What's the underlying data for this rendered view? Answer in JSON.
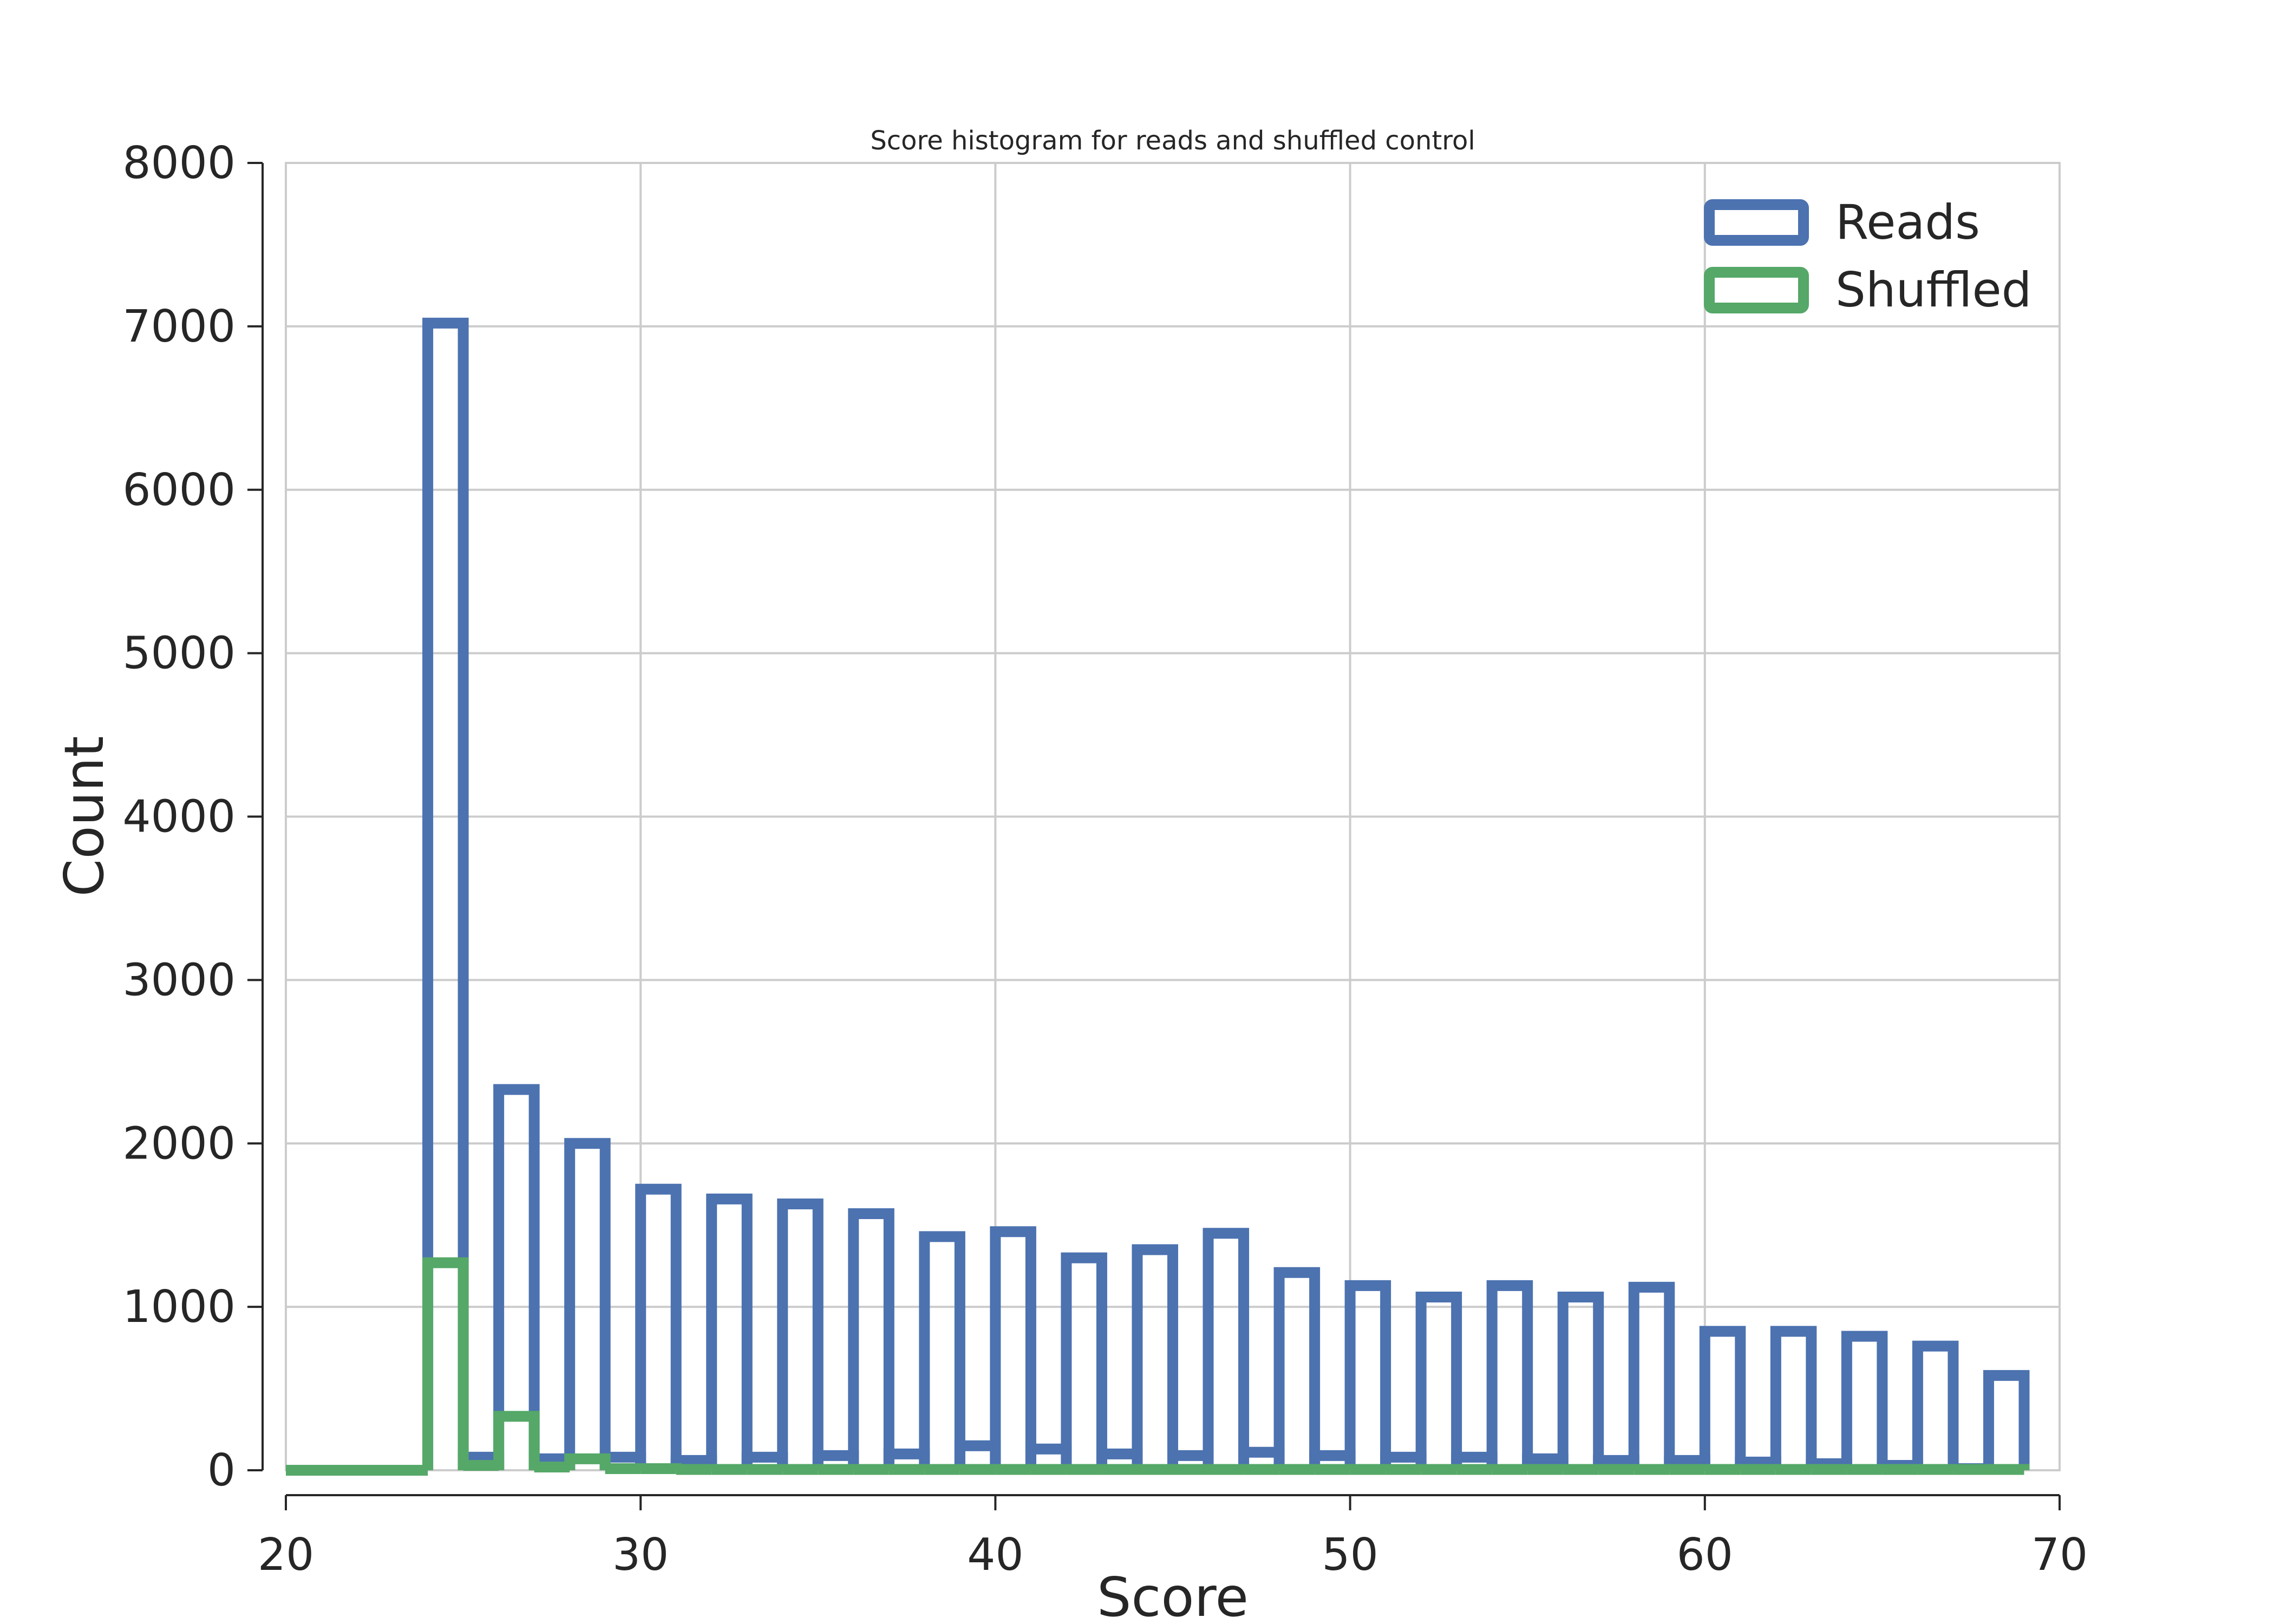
{
  "chart_data": {
    "type": "bar",
    "histtype": "step",
    "title": "Score histogram for reads and shuffled control",
    "xlabel": "Score",
    "ylabel": "Count",
    "xlim": [
      20,
      70
    ],
    "ylim": [
      0,
      8000
    ],
    "xticks": [
      "20",
      "30",
      "40",
      "50",
      "60",
      "70"
    ],
    "yticks": [
      "0",
      "1000",
      "2000",
      "3000",
      "4000",
      "5000",
      "6000",
      "7000",
      "8000"
    ],
    "grid": true,
    "legend_position": "top-right",
    "bin_edges": [
      20.0,
      24.0,
      25.0,
      26.0,
      27.0,
      28.0,
      29.0,
      30.0,
      31.0,
      32.0,
      33.0,
      34.0,
      35.0,
      36.0,
      37.0,
      38.0,
      39.0,
      40.0,
      41.0,
      42.0,
      43.0,
      44.0,
      45.0,
      46.0,
      47.0,
      48.0,
      49.0,
      50.0,
      51.0,
      52.0,
      53.0,
      54.0,
      55.0,
      56.0,
      57.0,
      58.0,
      59.0,
      60.0,
      61.0,
      62.0,
      63.0,
      64.0,
      65.0,
      66.0,
      67.0,
      68.0,
      69.0
    ],
    "series": [
      {
        "name": "Reads",
        "color": "#4c72b0",
        "values": [
          0,
          7020,
          80,
          2330,
          70,
          2000,
          80,
          1720,
          60,
          1660,
          80,
          1630,
          90,
          1570,
          100,
          1430,
          150,
          1460,
          130,
          1300,
          100,
          1350,
          90,
          1450,
          110,
          1210,
          90,
          1130,
          80,
          1060,
          80,
          1130,
          70,
          1060,
          60,
          1120,
          60,
          850,
          50,
          850,
          40,
          820,
          30,
          760,
          10,
          580
        ]
      },
      {
        "name": "Shuffled",
        "color": "#55a868",
        "values": [
          0,
          1270,
          30,
          330,
          20,
          70,
          10,
          10,
          5,
          5,
          5,
          5,
          5,
          5,
          5,
          5,
          5,
          5,
          5,
          5,
          5,
          5,
          5,
          5,
          5,
          5,
          5,
          5,
          5,
          5,
          5,
          5,
          5,
          5,
          5,
          5,
          5,
          5,
          5,
          5,
          5,
          5,
          5,
          5,
          5,
          5
        ]
      }
    ]
  }
}
